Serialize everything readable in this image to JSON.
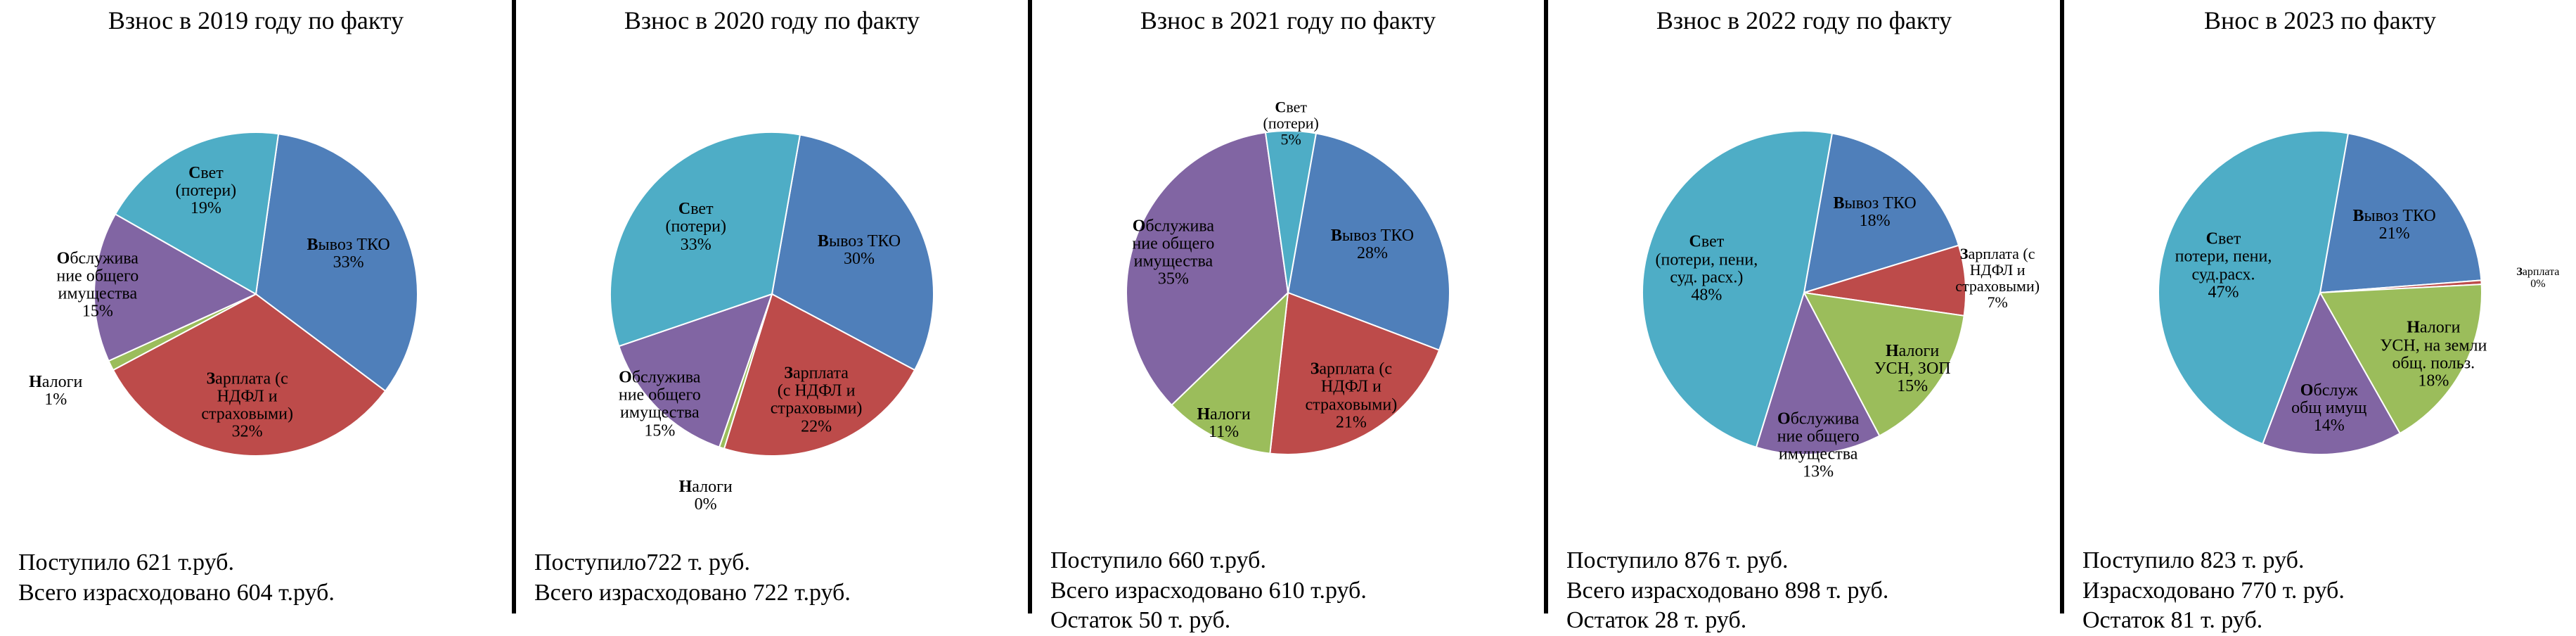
{
  "background_color": "#ffffff",
  "divider_color": "#000000",
  "title_fontsize": 36,
  "footer_fontsize": 34,
  "label_fontsize": 24,
  "pie_radius": 230,
  "panels": [
    {
      "title": "Взнос в 2019 году по факту",
      "type": "pie",
      "start_angle_deg": -82,
      "slices": [
        {
          "label_lines": [
            "Вывоз ТКО",
            "33%"
          ],
          "value": 33,
          "color": "#4f7fba",
          "label_r": 0.62,
          "label_font": 24
        },
        {
          "label_lines": [
            "Зарплата (с",
            "НДФЛ и",
            "страховыми)",
            "32%"
          ],
          "value": 32,
          "color": "#bd4b4a",
          "label_r": 0.7,
          "label_font": 24
        },
        {
          "label_lines": [
            "Налоги",
            "1%"
          ],
          "value": 1,
          "color": "#9bbd5b",
          "label_r": 1.38,
          "label_font": 24
        },
        {
          "label_lines": [
            "Обслужива",
            "ние общего",
            "имущества",
            "15%"
          ],
          "value": 15,
          "color": "#8165a3",
          "label_r": 0.98,
          "label_font": 24
        },
        {
          "label_lines": [
            "Свет",
            "(потери)",
            "19%"
          ],
          "value": 19,
          "color": "#4eadc6",
          "label_r": 0.7,
          "label_font": 24
        }
      ],
      "footer": [
        "Поступило 621 т.руб.",
        "Всего израсходовано 604 т.руб."
      ]
    },
    {
      "title": "Взнос в 2020 году по факту",
      "type": "pie",
      "start_angle_deg": -80,
      "slices": [
        {
          "label_lines": [
            "Вывоз ТКО",
            "30%"
          ],
          "value": 30,
          "color": "#4f7fba",
          "label_r": 0.6,
          "label_font": 24
        },
        {
          "label_lines": [
            "Зарплата",
            "(с НДФЛ и",
            "страховыми)",
            "22%"
          ],
          "value": 22,
          "color": "#bd4b4a",
          "label_r": 0.72,
          "label_font": 24
        },
        {
          "label_lines": [
            "Налоги",
            "0%"
          ],
          "value": 0.5,
          "color": "#9bbd5b",
          "label_r": 1.32,
          "label_font": 24
        },
        {
          "label_lines": [
            "Обслужива",
            "ние общего",
            "имущества",
            "15%"
          ],
          "value": 14.5,
          "color": "#8165a3",
          "label_r": 0.98,
          "label_font": 24
        },
        {
          "label_lines": [
            "Свет",
            "(потери)",
            "33%"
          ],
          "value": 33,
          "color": "#4eadc6",
          "label_r": 0.62,
          "label_font": 24
        }
      ],
      "footer": [
        "Поступило722 т. руб.",
        "Всего израсходовано 722 т.руб."
      ]
    },
    {
      "title": "Взнос в 2021 году по факту",
      "type": "pie",
      "start_angle_deg": -80,
      "slices": [
        {
          "label_lines": [
            "Вывоз ТКО",
            "28%"
          ],
          "value": 28,
          "color": "#4f7fba",
          "label_r": 0.6,
          "label_font": 24
        },
        {
          "label_lines": [
            "Зарплата (с",
            "НДФЛ и",
            "страховыми)",
            "21%"
          ],
          "value": 21,
          "color": "#bd4b4a",
          "label_r": 0.75,
          "label_font": 24
        },
        {
          "label_lines": [
            "Налоги",
            "11%"
          ],
          "value": 11,
          "color": "#9bbd5b",
          "label_r": 0.9,
          "label_font": 24
        },
        {
          "label_lines": [
            "Обслужива",
            "ние общего",
            "имущества",
            "35%"
          ],
          "value": 35,
          "color": "#8165a3",
          "label_r": 0.75,
          "label_font": 24
        },
        {
          "label_lines": [
            "Свет",
            "(потери)",
            "5%"
          ],
          "value": 5,
          "color": "#4eadc6",
          "label_r": 1.05,
          "label_font": 22
        }
      ],
      "footer": [
        "Поступило 660 т.руб.",
        "Всего израсходовано 610 т.руб.",
        "Остаток 50 т. руб."
      ]
    },
    {
      "title": "Взнос в 2022 году по факту",
      "type": "pie",
      "start_angle_deg": -80,
      "slices": [
        {
          "label_lines": [
            "Вывоз ТКО",
            "18%"
          ],
          "value": 17.5,
          "color": "#4f7fba",
          "label_r": 0.66,
          "label_font": 24
        },
        {
          "label_lines": [
            "Зарплата (с",
            "НДФЛ и",
            "страховыми)",
            "7%"
          ],
          "value": 7,
          "color": "#bd4b4a",
          "label_r": 1.2,
          "label_font": 22
        },
        {
          "label_lines": [
            "Налоги",
            "УСН, ЗОП",
            "15%"
          ],
          "value": 15,
          "color": "#9bbd5b",
          "label_r": 0.82,
          "label_font": 24
        },
        {
          "label_lines": [
            "Обслужива",
            "ние общего",
            "имущества",
            "13%"
          ],
          "value": 12.5,
          "color": "#8165a3",
          "label_r": 0.95,
          "label_font": 24
        },
        {
          "label_lines": [
            "Свет",
            "(потери, пени,",
            "суд. расх.)",
            "48%"
          ],
          "value": 48,
          "color": "#4eadc6",
          "label_r": 0.62,
          "label_font": 24
        }
      ],
      "footer": [
        "Поступило 876 т. руб.",
        "Всего израсходовано 898 т. руб.",
        "Остаток 28 т. руб."
      ]
    },
    {
      "title": "Внос в 2023 по факту",
      "type": "pie",
      "start_angle_deg": -80,
      "slices": [
        {
          "label_lines": [
            "Вывоз ТКО",
            "21%"
          ],
          "value": 21,
          "color": "#4f7fba",
          "label_r": 0.62,
          "label_font": 24
        },
        {
          "label_lines": [
            "Зарплата",
            "0%"
          ],
          "value": 0.4,
          "color": "#bd4b4a",
          "label_r": 1.35,
          "label_font": 16
        },
        {
          "label_lines": [
            "Налоги",
            "УСН, на земли",
            "общ. польз.",
            "18%"
          ],
          "value": 17.6,
          "color": "#9bbd5b",
          "label_r": 0.8,
          "label_font": 24
        },
        {
          "label_lines": [
            "Обслуж",
            "общ имущ",
            "14%"
          ],
          "value": 14,
          "color": "#8165a3",
          "label_r": 0.72,
          "label_font": 24
        },
        {
          "label_lines": [
            "Свет",
            "потери, пени,",
            "суд.расх.",
            "47%"
          ],
          "value": 47,
          "color": "#4eadc6",
          "label_r": 0.62,
          "label_font": 24
        }
      ],
      "footer": [
        "Поступило 823 т. руб.",
        "Израсходовано 770 т. руб.",
        "Остаток 81 т. руб."
      ]
    }
  ]
}
